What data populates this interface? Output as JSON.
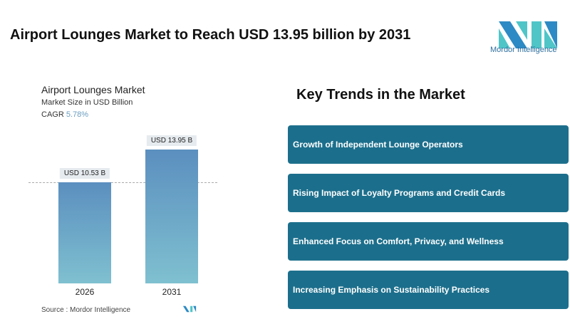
{
  "header": {
    "title": "Airport Lounges Market to Reach USD 13.95 billion by 2031"
  },
  "logo": {
    "text": "Mordor Intelligence"
  },
  "chart_data": {
    "type": "bar",
    "title": "Airport Lounges Market",
    "subtitle": "Market Size in USD Billion",
    "cagr_label": "CAGR",
    "cagr_value": "5.78%",
    "categories": [
      "2026",
      "2031"
    ],
    "values": [
      10.53,
      13.95
    ],
    "data_labels": [
      "USD 10.53 B",
      "USD 13.95 B"
    ],
    "ylim": [
      0,
      14.5
    ],
    "colors": {
      "bar_top": "#5b8fbf",
      "bar_bottom": "#7fc0d0"
    }
  },
  "source": "Source :  Mordor Intelligence",
  "trends": {
    "title": "Key Trends in the Market",
    "items": [
      "Growth of Independent Lounge Operators",
      "Rising Impact of Loyalty Programs and Credit Cards",
      "Enhanced Focus on Comfort, Privacy, and Wellness",
      "Increasing Emphasis on Sustainability Practices"
    ],
    "box_color": "#1c6f8c"
  }
}
